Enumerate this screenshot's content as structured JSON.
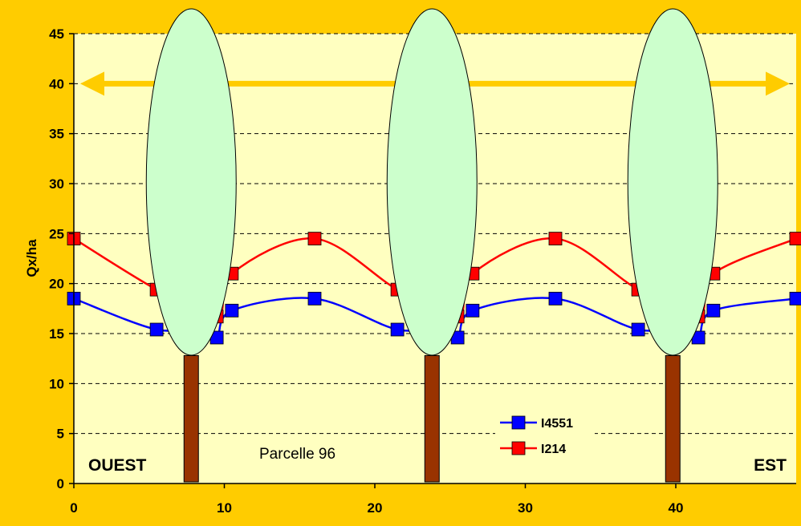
{
  "chart_data": {
    "type": "line",
    "title": "",
    "xlabel": "",
    "ylabel": "Qx/ha",
    "xlim": [
      0,
      48
    ],
    "ylim": [
      0,
      45
    ],
    "x_ticks": [
      0,
      10,
      20,
      30,
      40
    ],
    "y_ticks": [
      0,
      5,
      10,
      15,
      20,
      25,
      30,
      35,
      40,
      45
    ],
    "grid": "horizontal-dashed",
    "legend_position": "bottom-center",
    "series": [
      {
        "name": "I4551",
        "color": "#0000FF",
        "marker": "square",
        "x": [
          0,
          5.5,
          8.5,
          9.5,
          10.5,
          16,
          21.5,
          24.5,
          25.5,
          26.5,
          32,
          37.5,
          40.5,
          41.5,
          42.5,
          48
        ],
        "y": [
          18.5,
          15.4,
          15.8,
          14.6,
          17.3,
          18.5,
          15.4,
          15.8,
          14.6,
          17.3,
          18.5,
          15.4,
          15.8,
          14.6,
          17.3,
          18.5
        ]
      },
      {
        "name": "I214",
        "color": "#FF0000",
        "marker": "square",
        "x": [
          0,
          5.5,
          9.5,
          10.5,
          16,
          21.5,
          25.5,
          26.5,
          32,
          37.5,
          41.5,
          42.5,
          48
        ],
        "y": [
          24.5,
          19.4,
          16.7,
          21,
          24.5,
          19.4,
          16.7,
          21,
          24.5,
          19.4,
          16.7,
          21,
          24.5
        ]
      }
    ],
    "trees_x": [
      7.8,
      23.8,
      39.8
    ],
    "double_arrow_y": 40,
    "annotations": {
      "west": "OUEST",
      "east": "EST",
      "plot_name": "Parcelle 96"
    },
    "colors": {
      "background": "#FFCC00",
      "plot_area": "#FFFFC0",
      "arrow": "#FFCC00",
      "tree_crown": "#CCFFCC",
      "tree_trunk": "#993300"
    }
  }
}
